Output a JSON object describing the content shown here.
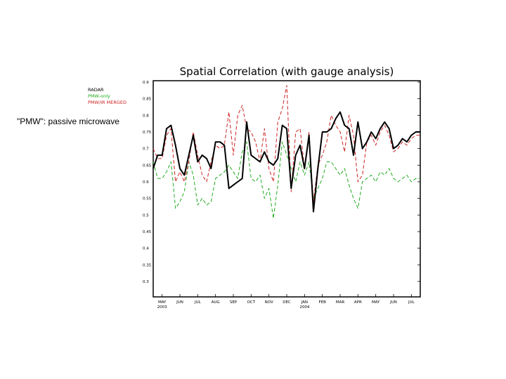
{
  "note": "\"PMW\": passive microwave",
  "chart_data": {
    "type": "line",
    "title": "Spatial Correlation (with gauge analysis)",
    "xlabel": "",
    "ylabel": "",
    "ylim": [
      0.3,
      0.9
    ],
    "yticks": [
      "0.9",
      "0.85",
      "0.8",
      "0.75",
      "0.7",
      "0.65",
      "0.6",
      "0.55",
      "0.5",
      "0.45",
      "0.4",
      "0.35",
      "0.3"
    ],
    "xticks": [
      {
        "label": "MAY",
        "sub": "2003",
        "x": 0
      },
      {
        "label": "JUN",
        "sub": "",
        "x": 1
      },
      {
        "label": "JUL",
        "sub": "",
        "x": 2
      },
      {
        "label": "AUG",
        "sub": "",
        "x": 3
      },
      {
        "label": "SEP",
        "sub": "",
        "x": 4
      },
      {
        "label": "OCT",
        "sub": "",
        "x": 5
      },
      {
        "label": "NOV",
        "sub": "",
        "x": 6
      },
      {
        "label": "DEC",
        "sub": "",
        "x": 7
      },
      {
        "label": "JAN",
        "sub": "2004",
        "x": 8
      },
      {
        "label": "FEB",
        "sub": "",
        "x": 9
      },
      {
        "label": "MAR",
        "sub": "",
        "x": 10
      },
      {
        "label": "APR",
        "sub": "",
        "x": 11
      },
      {
        "label": "MAY",
        "sub": "",
        "x": 12
      },
      {
        "label": "JUN",
        "sub": "",
        "x": 13
      },
      {
        "label": "JUL",
        "sub": "",
        "x": 14
      }
    ],
    "grid": false,
    "legend_position": "top-left",
    "x": [
      -0.5,
      -0.25,
      0,
      0.25,
      0.5,
      0.75,
      1,
      1.25,
      1.5,
      1.75,
      2,
      2.25,
      2.5,
      2.75,
      3,
      3.25,
      3.5,
      3.75,
      4,
      4.25,
      4.5,
      4.75,
      5,
      5.25,
      5.5,
      5.75,
      6,
      6.25,
      6.5,
      6.75,
      7,
      7.25,
      7.5,
      7.75,
      8,
      8.25,
      8.5,
      8.75,
      9,
      9.25,
      9.5,
      9.75,
      10,
      10.25,
      10.5,
      10.75,
      11,
      11.25,
      11.5,
      11.75,
      12,
      12.25,
      12.5,
      12.75,
      13,
      13.25,
      13.5,
      13.75,
      14,
      14.25,
      14.5
    ],
    "series": [
      {
        "name": "RADAR",
        "color": "#000000",
        "dash": "",
        "width": 2,
        "values": [
          0.64,
          0.68,
          0.68,
          0.76,
          0.77,
          0.71,
          0.64,
          0.62,
          0.68,
          0.74,
          0.66,
          0.68,
          0.67,
          0.64,
          0.72,
          0.72,
          0.71,
          0.58,
          0.59,
          0.6,
          0.61,
          0.78,
          0.68,
          0.67,
          0.66,
          0.69,
          0.66,
          0.65,
          0.67,
          0.77,
          0.76,
          0.58,
          0.68,
          0.71,
          0.64,
          0.74,
          0.51,
          0.64,
          0.75,
          0.75,
          0.76,
          0.79,
          0.81,
          0.77,
          0.76,
          0.68,
          0.78,
          0.7,
          0.72,
          0.75,
          0.73,
          0.76,
          0.78,
          0.76,
          0.7,
          0.71,
          0.73,
          0.72,
          0.74,
          0.75,
          0.75
        ]
      },
      {
        "name": "PMW-only",
        "color": "#22aa22",
        "dash": "5,3",
        "width": 1,
        "values": [
          0.66,
          0.61,
          0.61,
          0.63,
          0.66,
          0.52,
          0.54,
          0.57,
          0.66,
          0.62,
          0.53,
          0.55,
          0.53,
          0.54,
          0.61,
          0.62,
          0.63,
          0.65,
          0.63,
          0.61,
          0.69,
          0.72,
          0.61,
          0.6,
          0.62,
          0.55,
          0.58,
          0.49,
          0.59,
          0.72,
          0.68,
          0.64,
          0.6,
          0.66,
          0.62,
          0.66,
          0.55,
          0.58,
          0.61,
          0.66,
          0.66,
          0.64,
          0.62,
          0.64,
          0.59,
          0.55,
          0.52,
          0.6,
          0.61,
          0.62,
          0.6,
          0.63,
          0.62,
          0.64,
          0.61,
          0.6,
          0.61,
          0.62,
          0.6,
          0.61,
          0.61
        ]
      },
      {
        "name": "PMW/IR MERGED",
        "color": "#cc2222",
        "dash": "5,3",
        "width": 1,
        "values": [
          0.7,
          0.67,
          0.67,
          0.74,
          0.76,
          0.6,
          0.63,
          0.6,
          0.66,
          0.75,
          0.68,
          0.62,
          0.6,
          0.66,
          0.71,
          0.7,
          0.71,
          0.81,
          0.68,
          0.8,
          0.83,
          0.76,
          0.75,
          0.72,
          0.66,
          0.76,
          0.64,
          0.6,
          0.78,
          0.82,
          0.89,
          0.57,
          0.75,
          0.76,
          0.64,
          0.75,
          0.54,
          0.65,
          0.68,
          0.72,
          0.8,
          0.77,
          0.75,
          0.69,
          0.8,
          0.74,
          0.6,
          0.62,
          0.72,
          0.74,
          0.71,
          0.75,
          0.77,
          0.74,
          0.69,
          0.7,
          0.72,
          0.71,
          0.73,
          0.74,
          0.74
        ]
      }
    ]
  }
}
